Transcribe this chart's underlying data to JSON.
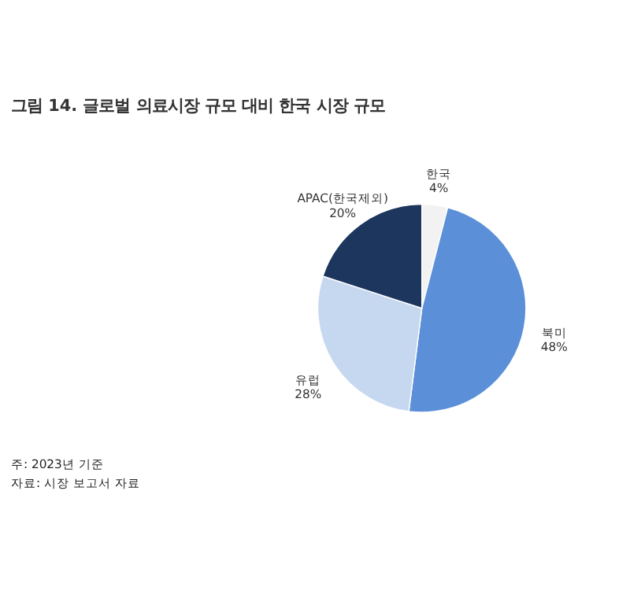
{
  "chart_data": {
    "type": "pie",
    "title": "그림 14. 글로벌 의료시장 규모 대비 한국 시장 규모",
    "categories": [
      "한국",
      "북미",
      "유럽",
      "APAC(한국제외)"
    ],
    "values": [
      4,
      48,
      28,
      20
    ],
    "value_labels": [
      "4%",
      "48%",
      "28%",
      "20%"
    ],
    "colors": [
      "#f2f2f2",
      "#5b8fd8",
      "#c6d8f0",
      "#1c365e"
    ],
    "legend": false,
    "annotations": [
      "주: 2023년 기준",
      "자료: 시장 보고서 자료"
    ]
  }
}
